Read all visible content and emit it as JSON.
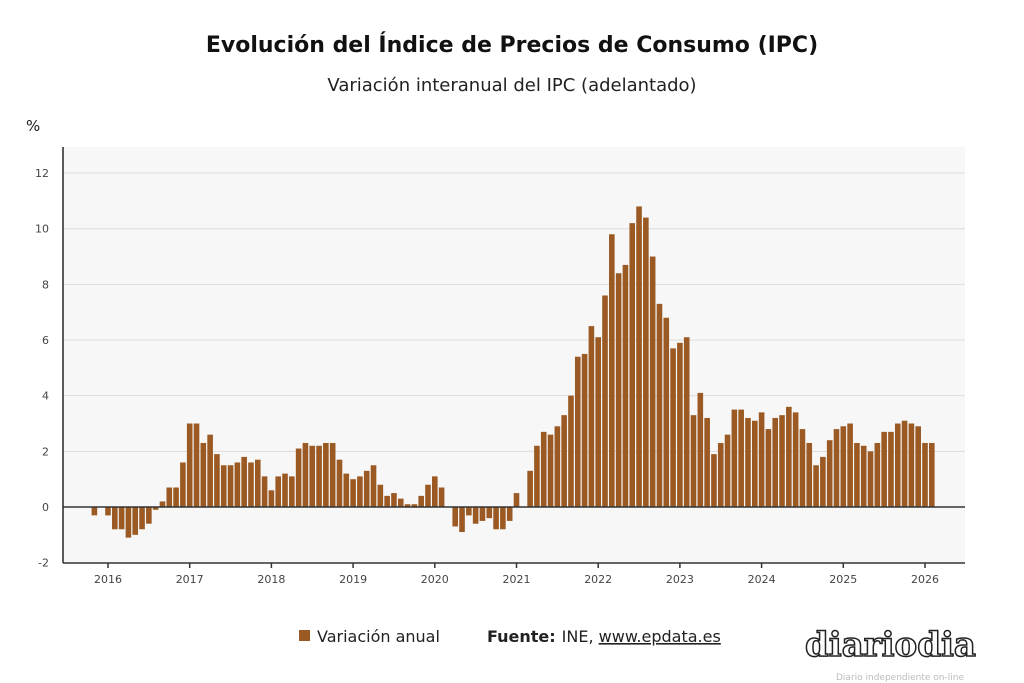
{
  "chart_data": {
    "type": "bar",
    "title": "Evolución del Índice de Precios de Consumo (IPC)",
    "subtitle": "Variación interanual del IPC (adelantado)",
    "ylabel": "%",
    "xlabel": "",
    "ylim": [
      -2,
      12
    ],
    "yticks": [
      "-2",
      "0",
      "2",
      "4",
      "6",
      "8",
      "10",
      "12"
    ],
    "xticks": [
      "2016",
      "2017",
      "2018",
      "2019",
      "2020",
      "2021",
      "2022",
      "2023",
      "2024",
      "2025",
      "2026"
    ],
    "grid": true,
    "bar_color": "#9b5a23",
    "legend_position": "bottom",
    "series": [
      {
        "name": "Variación anual",
        "start": "2015-11",
        "frequency": "monthly",
        "values": [
          -0.3,
          0.0,
          -0.3,
          -0.8,
          -0.8,
          -1.1,
          -1.0,
          -0.8,
          -0.6,
          -0.1,
          0.2,
          0.7,
          0.7,
          1.6,
          3.0,
          3.0,
          2.3,
          2.6,
          1.9,
          1.5,
          1.5,
          1.6,
          1.8,
          1.6,
          1.7,
          1.1,
          0.6,
          1.1,
          1.2,
          1.1,
          2.1,
          2.3,
          2.2,
          2.2,
          2.3,
          2.3,
          1.7,
          1.2,
          1.0,
          1.1,
          1.3,
          1.5,
          0.8,
          0.4,
          0.5,
          0.3,
          0.1,
          0.1,
          0.4,
          0.8,
          1.1,
          0.7,
          0.0,
          -0.7,
          -0.9,
          -0.3,
          -0.6,
          -0.5,
          -0.4,
          -0.8,
          -0.8,
          -0.5,
          0.5,
          0.0,
          1.3,
          2.2,
          2.7,
          2.6,
          2.9,
          3.3,
          4.0,
          5.4,
          5.5,
          6.5,
          6.1,
          7.6,
          9.8,
          8.4,
          8.7,
          10.2,
          10.8,
          10.4,
          9.0,
          7.3,
          6.8,
          5.7,
          5.9,
          6.1,
          3.3,
          4.1,
          3.2,
          1.9,
          2.3,
          2.6,
          3.5,
          3.5,
          3.2,
          3.1,
          3.4,
          2.8,
          3.2,
          3.3,
          3.6,
          3.4,
          2.8,
          2.3,
          1.5,
          1.8,
          2.4,
          2.8,
          2.9,
          3.0,
          2.3,
          2.2,
          2.0,
          2.3,
          2.7,
          2.7,
          3.0,
          3.1,
          3.0,
          2.9,
          2.3,
          2.3
        ]
      }
    ],
    "source_label": "Fuente:",
    "source_text": "INE, ",
    "source_link": "www.epdata.es"
  },
  "watermark": {
    "logo": "diariodia",
    "tagline": "Diario independiente on-line"
  }
}
